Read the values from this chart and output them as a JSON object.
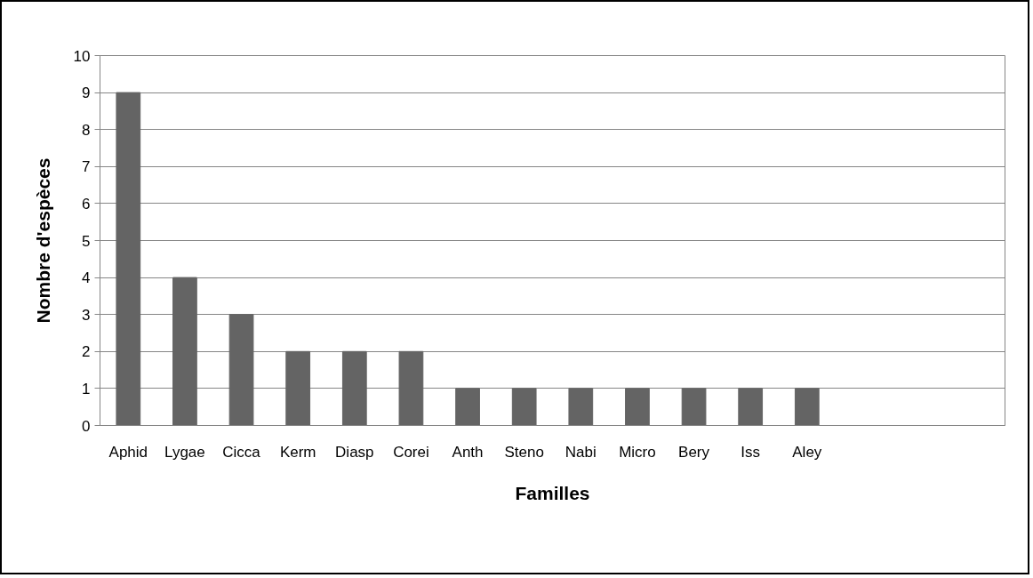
{
  "chart_data": {
    "type": "bar",
    "xlabel": "Familles",
    "ylabel": "Nombre d'espèces",
    "categories": [
      "Aphid",
      "Lygae",
      "Cicca",
      "Kerm",
      "Diasp",
      "Corei",
      "Anth",
      "Steno",
      "Nabi",
      "Micro",
      "Bery",
      "Iss",
      "Aley",
      null,
      null,
      null
    ],
    "values": [
      9,
      4,
      3,
      2,
      2,
      2,
      1,
      1,
      1,
      1,
      1,
      1,
      1,
      null,
      null,
      null
    ],
    "color": "#646464",
    "ylim": [
      0,
      10
    ],
    "yticks": [
      0,
      1,
      2,
      3,
      4,
      5,
      6,
      7,
      8,
      9,
      10
    ],
    "grid": "y"
  }
}
